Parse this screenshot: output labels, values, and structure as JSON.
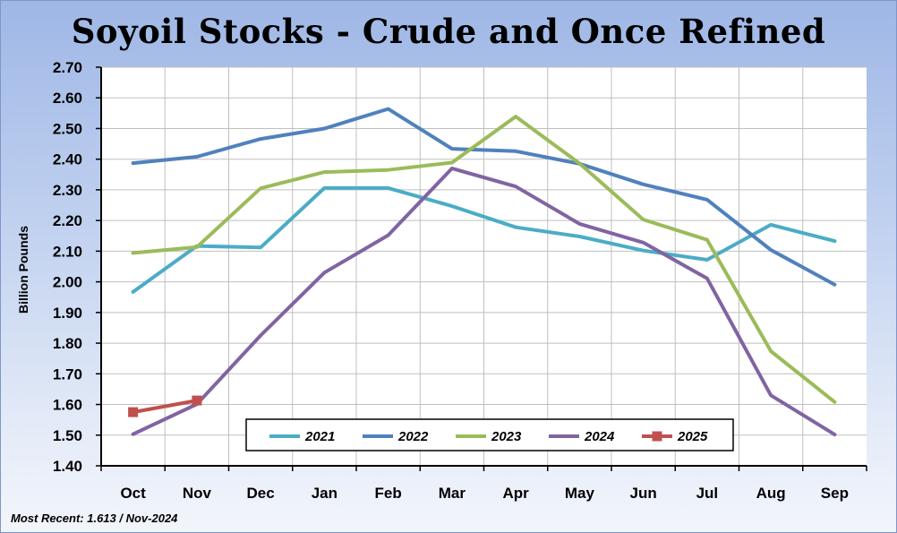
{
  "chart_data": {
    "type": "line",
    "title": "Soyoil Stocks - Crude and Once Refined",
    "xlabel": "",
    "ylabel": "Billion Pounds",
    "categories": [
      "Oct",
      "Nov",
      "Dec",
      "Jan",
      "Feb",
      "Mar",
      "Apr",
      "May",
      "Jun",
      "Jul",
      "Aug",
      "Sep"
    ],
    "ylim": [
      1.4,
      2.7
    ],
    "yticks": [
      "1.40",
      "1.50",
      "1.60",
      "1.70",
      "1.80",
      "1.90",
      "2.00",
      "2.10",
      "2.20",
      "2.30",
      "2.40",
      "2.50",
      "2.60",
      "2.70"
    ],
    "grid": true,
    "legend_position": "bottom-inside",
    "series": [
      {
        "name": "2021",
        "color": "#4bacc6",
        "marker": "none",
        "values": [
          1.967,
          2.117,
          2.112,
          2.306,
          2.306,
          2.247,
          2.178,
          2.148,
          2.102,
          2.072,
          2.186,
          2.133
        ]
      },
      {
        "name": "2022",
        "color": "#4f81bd",
        "marker": "none",
        "values": [
          2.387,
          2.408,
          2.466,
          2.5,
          2.564,
          2.434,
          2.426,
          2.385,
          2.318,
          2.268,
          2.104,
          1.991
        ]
      },
      {
        "name": "2023",
        "color": "#9bbb59",
        "marker": "none",
        "values": [
          2.094,
          2.113,
          2.305,
          2.358,
          2.365,
          2.389,
          2.539,
          2.386,
          2.203,
          2.137,
          1.774,
          1.608
        ]
      },
      {
        "name": "2024",
        "color": "#8064a2",
        "marker": "none",
        "values": [
          1.503,
          1.601,
          1.825,
          2.03,
          2.152,
          2.37,
          2.311,
          2.189,
          2.128,
          2.011,
          1.63,
          1.502
        ]
      },
      {
        "name": "2025",
        "color": "#c0504d",
        "marker": "square",
        "values": [
          1.575,
          1.613,
          null,
          null,
          null,
          null,
          null,
          null,
          null,
          null,
          null,
          null
        ]
      }
    ],
    "annotation": "Most Recent: 1.613 / Nov-2024"
  }
}
